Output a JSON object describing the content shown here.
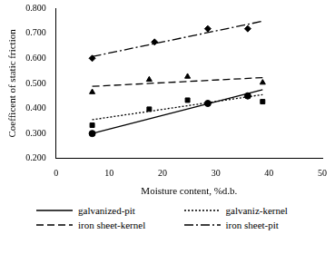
{
  "chart_data": {
    "type": "scatter",
    "x_label": "Moisture content, %d.b.",
    "y_label": "Coefficent of static friction",
    "xlim": [
      0,
      50
    ],
    "xticks": [
      0,
      10,
      20,
      30,
      40,
      50
    ],
    "ylim": [
      0.2,
      0.8
    ],
    "yticks": [
      {
        "value": 0.2,
        "label": "0.200"
      },
      {
        "value": 0.3,
        "label": "0.300"
      },
      {
        "value": 0.4,
        "label": "0.400"
      },
      {
        "value": 0.5,
        "label": "0.500"
      },
      {
        "value": 0.6,
        "label": "0.600"
      },
      {
        "value": 0.7,
        "label": "0.700"
      },
      {
        "value": 0.8,
        "label": "0.800"
      }
    ],
    "grid": false,
    "legend": "bottom",
    "series": [
      {
        "name": "galvanized-pit",
        "color": "#000000",
        "marker": "circle",
        "line_style": "solid",
        "x": [
          6.8,
          28.5,
          36.0
        ],
        "values": [
          0.3,
          0.42,
          0.45
        ],
        "trend": {
          "x": [
            6.8,
            38.8
          ],
          "values": [
            0.3,
            0.475
          ]
        }
      },
      {
        "name": "galvaniz-kernel",
        "color": "#000000",
        "marker": "square",
        "line_style": "dotted",
        "x": [
          6.8,
          17.5,
          24.7,
          38.8
        ],
        "values": [
          0.333,
          0.397,
          0.433,
          0.427
        ],
        "trend": {
          "x": [
            6.8,
            38.8
          ],
          "values": [
            0.355,
            0.455
          ]
        }
      },
      {
        "name": "iron sheet-kernel",
        "color": "#000000",
        "marker": "triangle",
        "line_style": "dashed",
        "x": [
          6.8,
          17.5,
          24.7,
          38.8
        ],
        "values": [
          0.465,
          0.515,
          0.527,
          0.503
        ],
        "trend": {
          "x": [
            6.8,
            38.8
          ],
          "values": [
            0.488,
            0.523
          ]
        }
      },
      {
        "name": "iron sheet-pit",
        "color": "#000000",
        "marker": "diamond",
        "line_style": "dashdot",
        "x": [
          6.8,
          18.5,
          28.5,
          36.0
        ],
        "values": [
          0.6,
          0.665,
          0.718,
          0.718
        ],
        "trend": {
          "x": [
            6.8,
            38.8
          ],
          "values": [
            0.607,
            0.748
          ]
        }
      }
    ]
  }
}
